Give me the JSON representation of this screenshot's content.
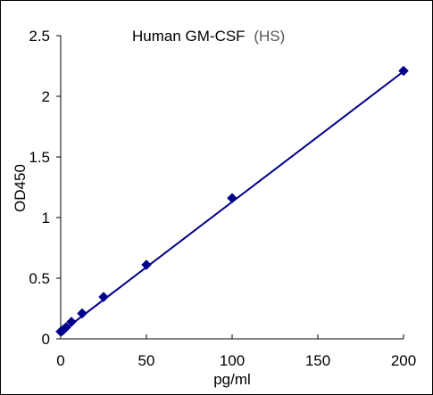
{
  "chart_data": {
    "type": "scatter",
    "title": "Human GM-CSF",
    "title_suffix": "(HS)",
    "xlabel": "pg/ml",
    "ylabel": "OD450",
    "xlim": [
      0,
      200
    ],
    "ylim": [
      0,
      2.5
    ],
    "x_ticks": [
      0,
      50,
      100,
      150,
      200
    ],
    "y_ticks": [
      0,
      0.5,
      1,
      1.5,
      2,
      2.5
    ],
    "x_tick_labels": [
      "0",
      "50",
      "100",
      "150",
      "200"
    ],
    "y_tick_labels": [
      "0",
      "0.5",
      "1",
      "1.5",
      "2",
      "2.5"
    ],
    "grid": false,
    "legend": "none",
    "series": [
      {
        "marker": "diamond",
        "color": "#00008B",
        "x": [
          0,
          0.78,
          1.56,
          3.13,
          6.25,
          12.5,
          25,
          50,
          100,
          200
        ],
        "y": [
          0.06,
          0.065,
          0.075,
          0.095,
          0.14,
          0.21,
          0.345,
          0.61,
          1.16,
          2.21
        ]
      }
    ],
    "trendline": {
      "type": "linear",
      "color": "#00008B",
      "x": [
        0,
        200
      ],
      "y": [
        0.053,
        2.205
      ]
    }
  }
}
